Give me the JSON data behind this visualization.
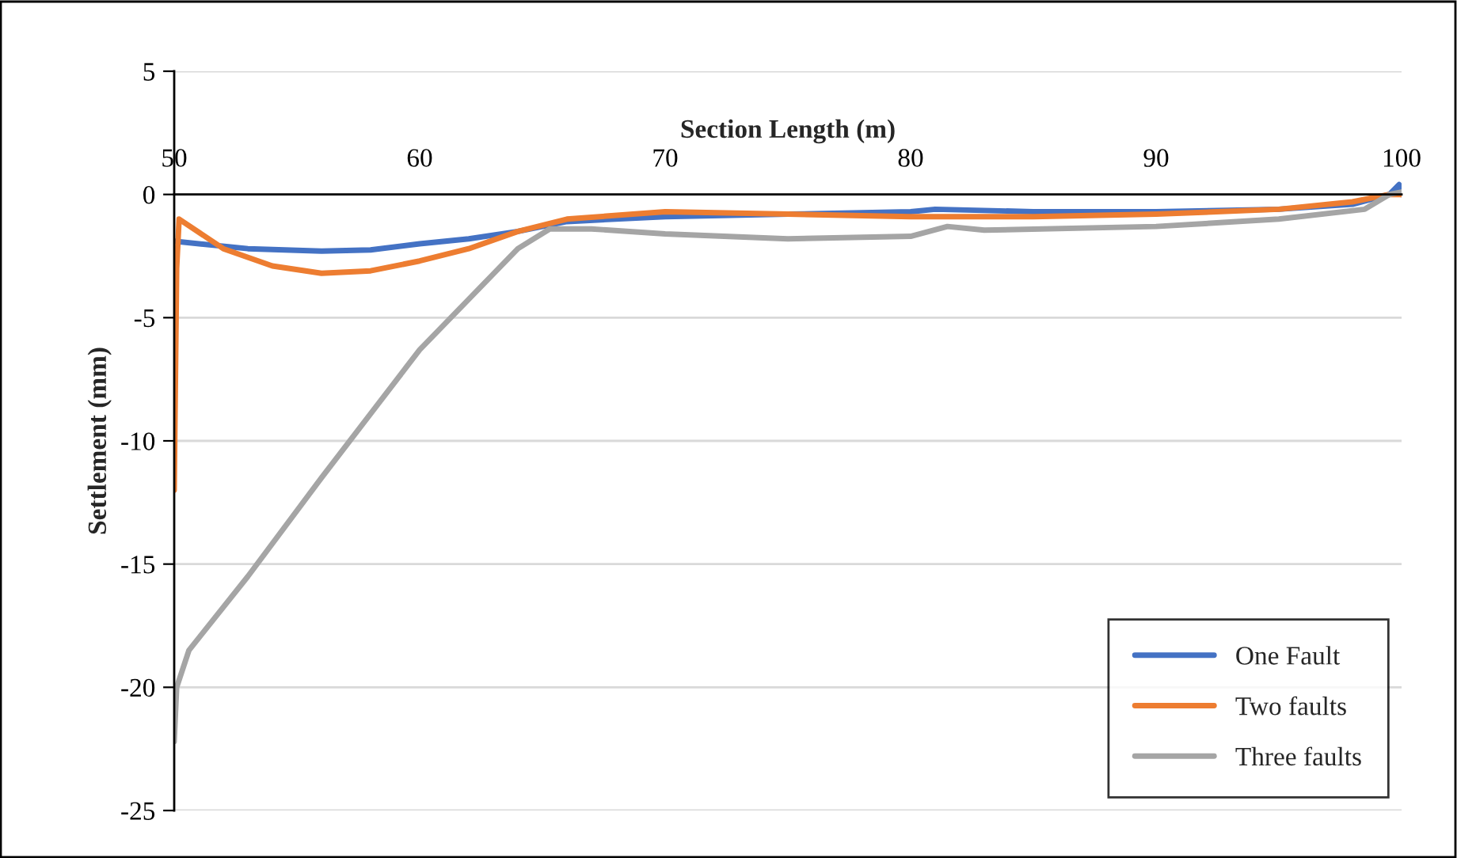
{
  "chart_data": {
    "type": "line",
    "xlabel": "Section Length (m)",
    "ylabel": "Settlement (mm)",
    "xlim": [
      50,
      100
    ],
    "xticks": [
      50,
      60,
      70,
      80,
      90,
      100
    ],
    "ylim": [
      -25,
      5
    ],
    "yticks": [
      -25,
      -20,
      -15,
      -10,
      -5,
      0,
      5
    ],
    "grid": "y",
    "legend": "bottom right",
    "marker": "none",
    "line_style": "solid",
    "series": [
      {
        "name": "One Fault",
        "color": "#4472c4",
        "x": [
          50,
          53,
          56,
          58,
          60,
          62,
          64,
          66,
          70,
          75,
          80,
          81,
          85,
          90,
          95,
          98,
          99.5,
          99.9,
          100
        ],
        "values": [
          -1.9,
          -2.2,
          -2.3,
          -2.25,
          -2.0,
          -1.8,
          -1.5,
          -1.1,
          -0.9,
          -0.8,
          -0.7,
          -0.6,
          -0.7,
          -0.7,
          -0.6,
          -0.4,
          0,
          0.4,
          0
        ]
      },
      {
        "name": "Two faults",
        "color": "#ed7d31",
        "x": [
          50,
          50.1,
          50.2,
          52,
          54,
          56,
          58,
          60,
          62,
          64,
          66,
          70,
          75,
          80,
          85,
          90,
          95,
          98,
          99.5,
          100
        ],
        "values": [
          -12,
          -3,
          -1.0,
          -2.2,
          -2.9,
          -3.2,
          -3.1,
          -2.7,
          -2.2,
          -1.5,
          -1.0,
          -0.7,
          -0.8,
          -0.9,
          -0.9,
          -0.8,
          -0.6,
          -0.3,
          0,
          0
        ]
      },
      {
        "name": "Three faults",
        "color": "#a5a5a5",
        "x": [
          50,
          50.1,
          50.6,
          53,
          56,
          60,
          64,
          65.3,
          67,
          70,
          75,
          80,
          81.5,
          83,
          90,
          95,
          98.5,
          99,
          99.5,
          100
        ],
        "values": [
          -22.2,
          -20,
          -18.5,
          -15.5,
          -11.5,
          -6.3,
          -2.2,
          -1.4,
          -1.4,
          -1.6,
          -1.8,
          -1.7,
          -1.3,
          -1.45,
          -1.3,
          -1.0,
          -0.6,
          -0.3,
          0,
          0.1
        ]
      }
    ]
  }
}
